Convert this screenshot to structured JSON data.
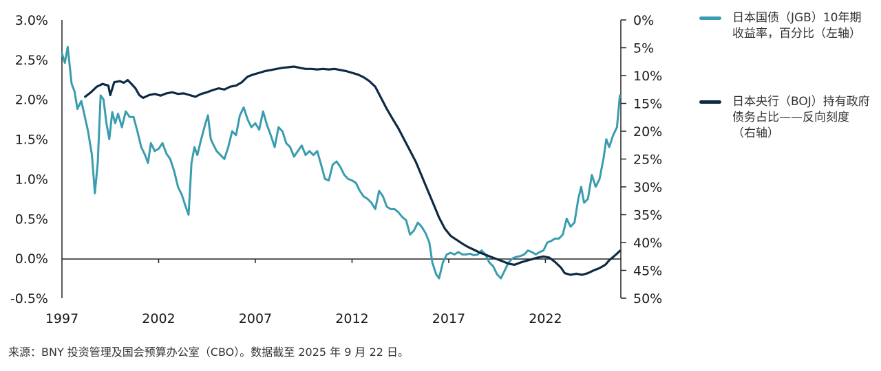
{
  "chart_data": {
    "type": "line",
    "x_ticks": [
      "1997",
      "2002",
      "2007",
      "2012",
      "2017",
      "2022"
    ],
    "x_range": [
      1997,
      2025.9
    ],
    "y_left": {
      "ticks": [
        "3.0%",
        "2.5%",
        "2.0%",
        "1.5%",
        "1.0%",
        "0.5%",
        "0.0%",
        "-0.5%"
      ],
      "range": [
        -0.5,
        3.0
      ]
    },
    "y_right": {
      "ticks": [
        "0%",
        "5%",
        "10%",
        "15%",
        "20%",
        "25%",
        "30%",
        "35%",
        "40%",
        "45%",
        "50%"
      ],
      "range": [
        0,
        50
      ],
      "reversed": true
    },
    "series": [
      {
        "name": "日本国债（JGB）10年期收益率，百分比（左轴）",
        "axis": "left",
        "color": "#3a9caf",
        "points": [
          [
            1997.0,
            2.58
          ],
          [
            1997.15,
            2.46
          ],
          [
            1997.3,
            2.66
          ],
          [
            1997.5,
            2.2
          ],
          [
            1997.65,
            2.1
          ],
          [
            1997.8,
            1.88
          ],
          [
            1998.0,
            1.98
          ],
          [
            1998.15,
            1.82
          ],
          [
            1998.35,
            1.6
          ],
          [
            1998.55,
            1.3
          ],
          [
            1998.7,
            0.82
          ],
          [
            1998.85,
            1.2
          ],
          [
            1999.0,
            2.05
          ],
          [
            1999.15,
            2.0
          ],
          [
            1999.3,
            1.7
          ],
          [
            1999.45,
            1.5
          ],
          [
            1999.6,
            1.84
          ],
          [
            1999.75,
            1.7
          ],
          [
            1999.9,
            1.82
          ],
          [
            2000.1,
            1.65
          ],
          [
            2000.3,
            1.85
          ],
          [
            2000.5,
            1.78
          ],
          [
            2000.7,
            1.78
          ],
          [
            2000.9,
            1.6
          ],
          [
            2001.1,
            1.4
          ],
          [
            2001.3,
            1.3
          ],
          [
            2001.45,
            1.2
          ],
          [
            2001.6,
            1.45
          ],
          [
            2001.8,
            1.35
          ],
          [
            2002.0,
            1.38
          ],
          [
            2002.2,
            1.45
          ],
          [
            2002.4,
            1.32
          ],
          [
            2002.6,
            1.25
          ],
          [
            2002.8,
            1.1
          ],
          [
            2003.0,
            0.9
          ],
          [
            2003.2,
            0.8
          ],
          [
            2003.4,
            0.65
          ],
          [
            2003.55,
            0.55
          ],
          [
            2003.7,
            1.2
          ],
          [
            2003.85,
            1.4
          ],
          [
            2004.0,
            1.3
          ],
          [
            2004.2,
            1.5
          ],
          [
            2004.4,
            1.68
          ],
          [
            2004.55,
            1.8
          ],
          [
            2004.7,
            1.5
          ],
          [
            2004.85,
            1.42
          ],
          [
            2005.0,
            1.35
          ],
          [
            2005.2,
            1.3
          ],
          [
            2005.4,
            1.25
          ],
          [
            2005.6,
            1.4
          ],
          [
            2005.8,
            1.6
          ],
          [
            2006.0,
            1.55
          ],
          [
            2006.2,
            1.8
          ],
          [
            2006.4,
            1.9
          ],
          [
            2006.6,
            1.75
          ],
          [
            2006.8,
            1.65
          ],
          [
            2007.0,
            1.7
          ],
          [
            2007.2,
            1.62
          ],
          [
            2007.4,
            1.85
          ],
          [
            2007.6,
            1.68
          ],
          [
            2007.8,
            1.55
          ],
          [
            2008.0,
            1.4
          ],
          [
            2008.2,
            1.65
          ],
          [
            2008.4,
            1.6
          ],
          [
            2008.6,
            1.45
          ],
          [
            2008.8,
            1.4
          ],
          [
            2009.0,
            1.28
          ],
          [
            2009.2,
            1.35
          ],
          [
            2009.4,
            1.42
          ],
          [
            2009.6,
            1.3
          ],
          [
            2009.8,
            1.35
          ],
          [
            2010.0,
            1.3
          ],
          [
            2010.2,
            1.35
          ],
          [
            2010.4,
            1.18
          ],
          [
            2010.6,
            1.0
          ],
          [
            2010.8,
            0.98
          ],
          [
            2011.0,
            1.18
          ],
          [
            2011.2,
            1.22
          ],
          [
            2011.4,
            1.15
          ],
          [
            2011.6,
            1.05
          ],
          [
            2011.8,
            1.0
          ],
          [
            2012.0,
            0.98
          ],
          [
            2012.2,
            0.95
          ],
          [
            2012.4,
            0.85
          ],
          [
            2012.6,
            0.78
          ],
          [
            2012.8,
            0.75
          ],
          [
            2013.0,
            0.7
          ],
          [
            2013.2,
            0.62
          ],
          [
            2013.4,
            0.85
          ],
          [
            2013.6,
            0.78
          ],
          [
            2013.8,
            0.65
          ],
          [
            2014.0,
            0.62
          ],
          [
            2014.2,
            0.62
          ],
          [
            2014.4,
            0.58
          ],
          [
            2014.6,
            0.52
          ],
          [
            2014.8,
            0.48
          ],
          [
            2015.0,
            0.3
          ],
          [
            2015.2,
            0.35
          ],
          [
            2015.4,
            0.45
          ],
          [
            2015.6,
            0.4
          ],
          [
            2015.8,
            0.32
          ],
          [
            2016.0,
            0.2
          ],
          [
            2016.15,
            -0.05
          ],
          [
            2016.35,
            -0.2
          ],
          [
            2016.5,
            -0.25
          ],
          [
            2016.7,
            -0.05
          ],
          [
            2016.9,
            0.05
          ],
          [
            2017.1,
            0.07
          ],
          [
            2017.3,
            0.05
          ],
          [
            2017.5,
            0.08
          ],
          [
            2017.7,
            0.05
          ],
          [
            2017.9,
            0.05
          ],
          [
            2018.1,
            0.06
          ],
          [
            2018.3,
            0.04
          ],
          [
            2018.5,
            0.05
          ],
          [
            2018.7,
            0.1
          ],
          [
            2018.9,
            0.05
          ],
          [
            2019.1,
            -0.05
          ],
          [
            2019.3,
            -0.1
          ],
          [
            2019.5,
            -0.2
          ],
          [
            2019.7,
            -0.25
          ],
          [
            2019.9,
            -0.15
          ],
          [
            2020.1,
            -0.05
          ],
          [
            2020.3,
            0.0
          ],
          [
            2020.5,
            0.02
          ],
          [
            2020.7,
            0.03
          ],
          [
            2020.9,
            0.05
          ],
          [
            2021.1,
            0.1
          ],
          [
            2021.3,
            0.08
          ],
          [
            2021.5,
            0.05
          ],
          [
            2021.7,
            0.08
          ],
          [
            2021.9,
            0.1
          ],
          [
            2022.1,
            0.2
          ],
          [
            2022.3,
            0.22
          ],
          [
            2022.5,
            0.25
          ],
          [
            2022.7,
            0.25
          ],
          [
            2022.9,
            0.3
          ],
          [
            2023.1,
            0.5
          ],
          [
            2023.3,
            0.4
          ],
          [
            2023.5,
            0.45
          ],
          [
            2023.7,
            0.75
          ],
          [
            2023.85,
            0.9
          ],
          [
            2024.0,
            0.7
          ],
          [
            2024.2,
            0.75
          ],
          [
            2024.4,
            1.05
          ],
          [
            2024.6,
            0.9
          ],
          [
            2024.8,
            1.0
          ],
          [
            2025.0,
            1.25
          ],
          [
            2025.15,
            1.5
          ],
          [
            2025.3,
            1.4
          ],
          [
            2025.5,
            1.55
          ],
          [
            2025.7,
            1.65
          ],
          [
            2025.85,
            2.05
          ]
        ]
      },
      {
        "name": "日本央行（BOJ）持有政府债务占比——反向刻度（右轴）",
        "axis": "right",
        "color": "#0d2a45",
        "points": [
          [
            1998.2,
            13.8
          ],
          [
            1998.5,
            13.0
          ],
          [
            1998.8,
            12.0
          ],
          [
            1999.1,
            11.5
          ],
          [
            1999.4,
            11.8
          ],
          [
            1999.5,
            13.5
          ],
          [
            1999.7,
            11.2
          ],
          [
            2000.0,
            11.0
          ],
          [
            2000.2,
            11.3
          ],
          [
            2000.4,
            10.8
          ],
          [
            2000.6,
            11.5
          ],
          [
            2000.8,
            12.3
          ],
          [
            2001.0,
            13.5
          ],
          [
            2001.2,
            14.0
          ],
          [
            2001.5,
            13.5
          ],
          [
            2001.8,
            13.3
          ],
          [
            2002.1,
            13.6
          ],
          [
            2002.4,
            13.2
          ],
          [
            2002.7,
            13.0
          ],
          [
            2003.0,
            13.3
          ],
          [
            2003.3,
            13.2
          ],
          [
            2003.6,
            13.5
          ],
          [
            2003.9,
            13.8
          ],
          [
            2004.2,
            13.3
          ],
          [
            2004.5,
            13.0
          ],
          [
            2004.8,
            12.6
          ],
          [
            2005.1,
            12.3
          ],
          [
            2005.4,
            12.5
          ],
          [
            2005.7,
            12.0
          ],
          [
            2006.0,
            11.8
          ],
          [
            2006.3,
            11.2
          ],
          [
            2006.6,
            10.2
          ],
          [
            2006.9,
            9.8
          ],
          [
            2007.2,
            9.5
          ],
          [
            2007.5,
            9.2
          ],
          [
            2007.8,
            9.0
          ],
          [
            2008.1,
            8.8
          ],
          [
            2008.4,
            8.6
          ],
          [
            2008.7,
            8.5
          ],
          [
            2009.0,
            8.4
          ],
          [
            2009.3,
            8.6
          ],
          [
            2009.6,
            8.8
          ],
          [
            2009.9,
            8.8
          ],
          [
            2010.2,
            8.9
          ],
          [
            2010.5,
            8.8
          ],
          [
            2010.8,
            8.9
          ],
          [
            2011.1,
            8.8
          ],
          [
            2011.4,
            9.0
          ],
          [
            2011.7,
            9.2
          ],
          [
            2012.0,
            9.5
          ],
          [
            2012.3,
            9.8
          ],
          [
            2012.6,
            10.3
          ],
          [
            2012.9,
            11.0
          ],
          [
            2013.2,
            12.0
          ],
          [
            2013.5,
            14.0
          ],
          [
            2013.8,
            16.0
          ],
          [
            2014.1,
            17.8
          ],
          [
            2014.4,
            19.5
          ],
          [
            2014.7,
            21.5
          ],
          [
            2015.0,
            23.5
          ],
          [
            2015.3,
            25.5
          ],
          [
            2015.6,
            28.0
          ],
          [
            2015.9,
            30.5
          ],
          [
            2016.2,
            33.0
          ],
          [
            2016.5,
            35.5
          ],
          [
            2016.8,
            37.5
          ],
          [
            2017.1,
            38.8
          ],
          [
            2017.4,
            39.5
          ],
          [
            2017.7,
            40.2
          ],
          [
            2018.0,
            40.8
          ],
          [
            2018.3,
            41.3
          ],
          [
            2018.6,
            41.8
          ],
          [
            2018.9,
            42.2
          ],
          [
            2019.2,
            42.6
          ],
          [
            2019.5,
            43.0
          ],
          [
            2019.8,
            43.4
          ],
          [
            2020.1,
            43.8
          ],
          [
            2020.4,
            44.0
          ],
          [
            2020.7,
            43.6
          ],
          [
            2021.0,
            43.3
          ],
          [
            2021.3,
            43.0
          ],
          [
            2021.6,
            42.7
          ],
          [
            2021.9,
            42.5
          ],
          [
            2022.2,
            42.7
          ],
          [
            2022.5,
            43.5
          ],
          [
            2022.8,
            44.5
          ],
          [
            2023.0,
            45.5
          ],
          [
            2023.3,
            45.8
          ],
          [
            2023.6,
            45.6
          ],
          [
            2023.9,
            45.8
          ],
          [
            2024.2,
            45.5
          ],
          [
            2024.5,
            45.0
          ],
          [
            2024.8,
            44.6
          ],
          [
            2025.1,
            44.0
          ],
          [
            2025.3,
            43.2
          ],
          [
            2025.5,
            42.6
          ],
          [
            2025.7,
            42.0
          ],
          [
            2025.85,
            41.5
          ]
        ]
      }
    ]
  },
  "source_note": "来源：BNY 投资管理及国会预算办公室（CBO）。数据截至 2025 年 9 月 22 日。"
}
